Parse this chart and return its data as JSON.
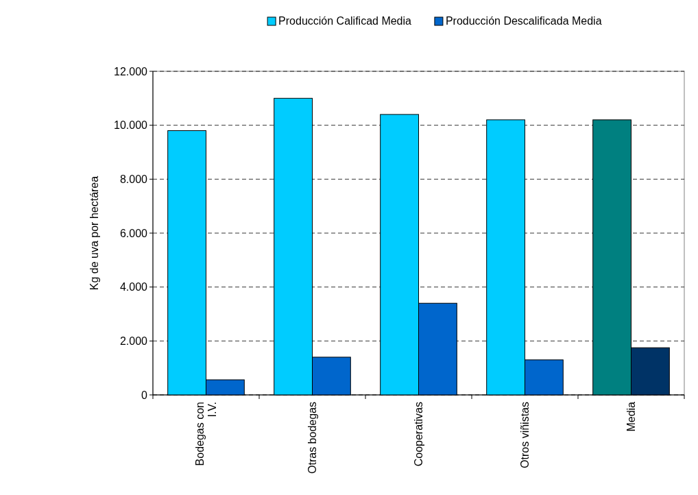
{
  "chart_data": {
    "type": "bar",
    "ylabel": "Kg de uva por hectárea",
    "categories": [
      "Bodegas con\nI.V.",
      "Otras bodegas",
      "Cooperativas",
      "Otros viñistas",
      "Media"
    ],
    "series": [
      {
        "name": "Producción Calificad Media",
        "color": "#00ccff",
        "colors": [
          "#00ccff",
          "#00ccff",
          "#00ccff",
          "#00ccff",
          "#008080"
        ],
        "values": [
          9800,
          11000,
          10400,
          10200,
          10200
        ]
      },
      {
        "name": "Producción Descalificada Media",
        "color": "#0066cc",
        "colors": [
          "#0066cc",
          "#0066cc",
          "#0066cc",
          "#0066cc",
          "#003366"
        ],
        "values": [
          560,
          1400,
          3400,
          1300,
          1750
        ]
      }
    ],
    "ylim": [
      0,
      12000
    ],
    "yticks": [
      {
        "value": 0,
        "label": "0"
      },
      {
        "value": 2000,
        "label": "2.000"
      },
      {
        "value": 4000,
        "label": "4.000"
      },
      {
        "value": 6000,
        "label": "6.000"
      },
      {
        "value": 8000,
        "label": "8.000"
      },
      {
        "value": 10000,
        "label": "10.000"
      },
      {
        "value": 12000,
        "label": "12.000"
      }
    ],
    "grid": "y",
    "line_style": "dashed",
    "legend": "top"
  }
}
